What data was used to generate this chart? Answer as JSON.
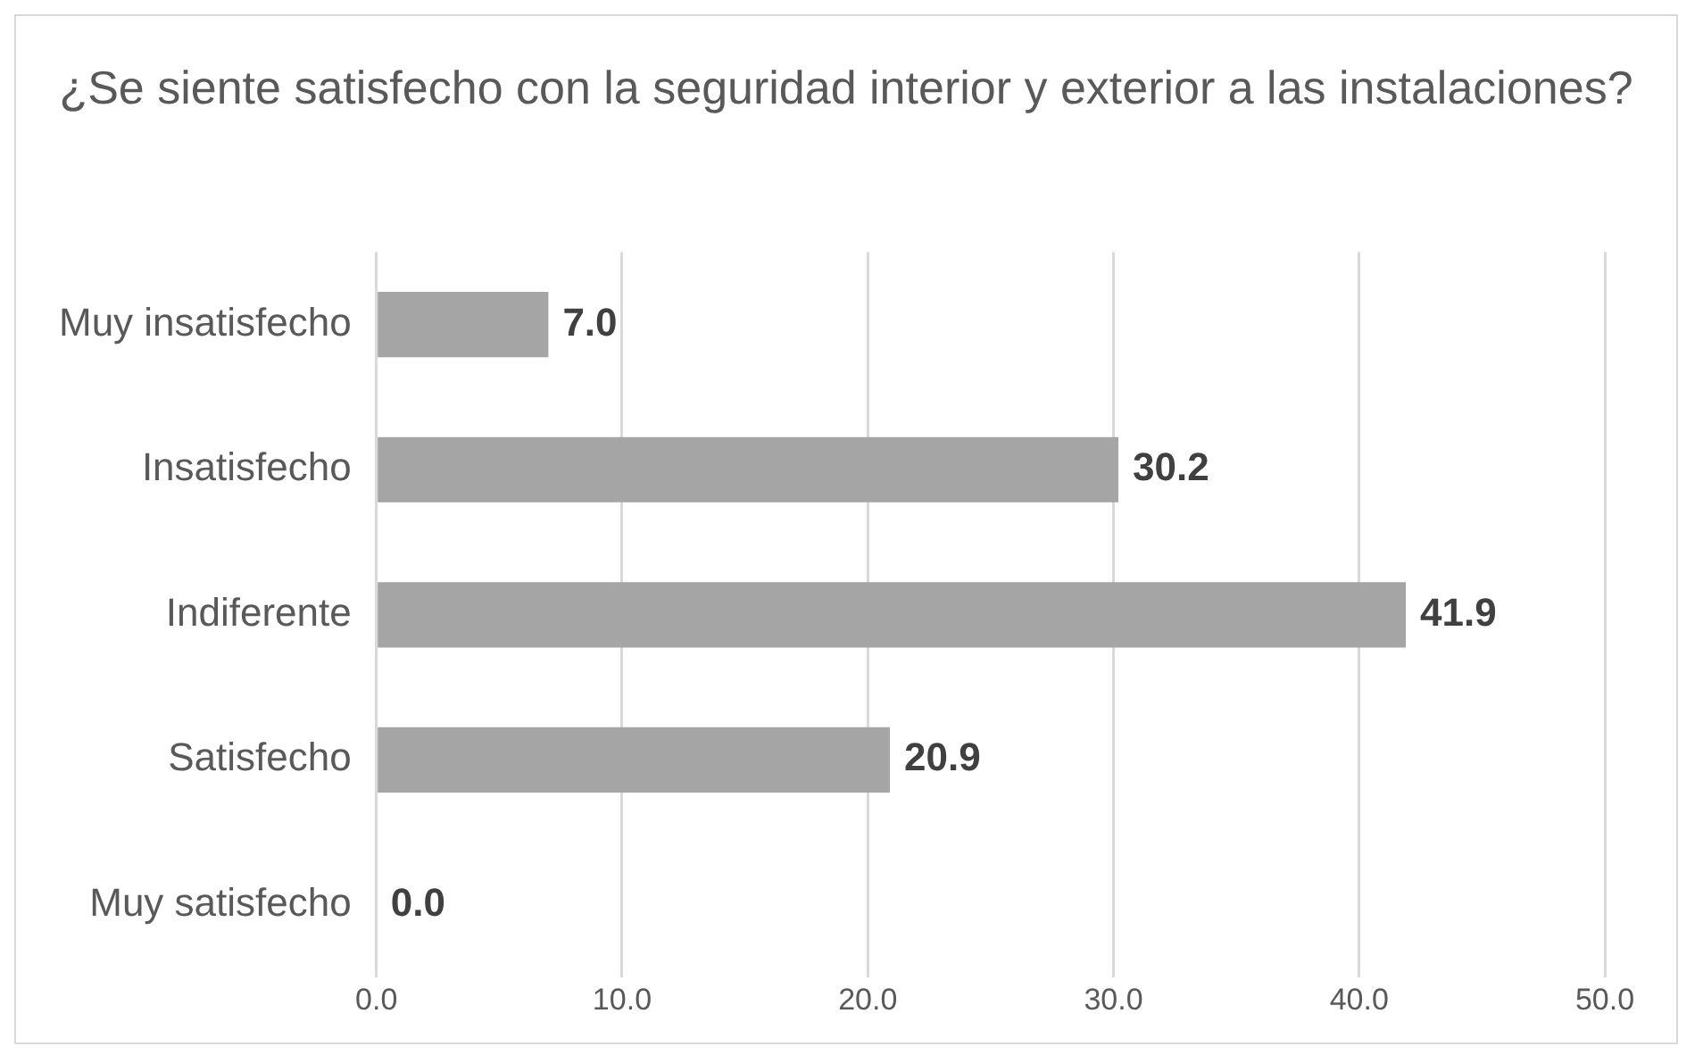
{
  "chart_data": {
    "type": "bar",
    "orientation": "horizontal",
    "title": "¿Se siente satisfecho con la seguridad interior y exterior a las instalaciones?",
    "categories": [
      "Muy insatisfecho",
      "Insatisfecho",
      "Indiferente",
      "Satisfecho",
      "Muy satisfecho"
    ],
    "values": [
      7.0,
      30.2,
      41.9,
      20.9,
      0.0
    ],
    "color": "#a5a5a5",
    "value_labels": [
      "7.0",
      "30.2",
      "41.9",
      "20.9",
      "0.0"
    ],
    "xlim": [
      0,
      50
    ],
    "xticks": [
      {
        "value": 0,
        "label": "0.0"
      },
      {
        "value": 10,
        "label": "10.0"
      },
      {
        "value": 20,
        "label": "20.0"
      },
      {
        "value": 30,
        "label": "30.0"
      },
      {
        "value": 40,
        "label": "40.0"
      },
      {
        "value": 50,
        "label": "50.0"
      }
    ],
    "grid": "x",
    "legend": false
  }
}
